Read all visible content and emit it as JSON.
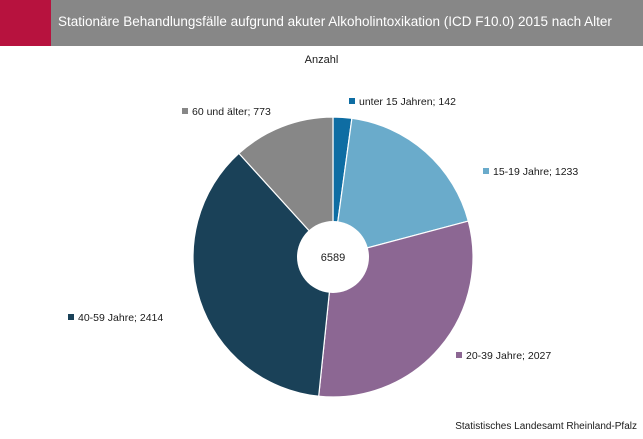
{
  "title": "Stationäre Behandlungsfälle aufgrund akuter Alkoholintoxikation (ICD F10.0) 2015 nach Alter",
  "subtitle": "Anzahl",
  "source": "Statistisches Landesamt Rheinland-Pfalz",
  "colors": {
    "header": "#878787",
    "accent": "#b7123e"
  },
  "chart_data": {
    "type": "pie",
    "variant": "donut",
    "total_label": "6589",
    "slices": [
      {
        "label": "unter 15 Jahren; 142",
        "value": 142,
        "color": "#0e6da3"
      },
      {
        "label": "15-19 Jahre; 1233",
        "value": 1233,
        "color": "#6aabcb"
      },
      {
        "label": "20-39 Jahre; 2027",
        "value": 2027,
        "color": "#8c6793"
      },
      {
        "label": "40-59 Jahre; 2414",
        "value": 2414,
        "color": "#1a4158"
      },
      {
        "label": "60 und älter; 773",
        "value": 773,
        "color": "#878787"
      }
    ]
  }
}
